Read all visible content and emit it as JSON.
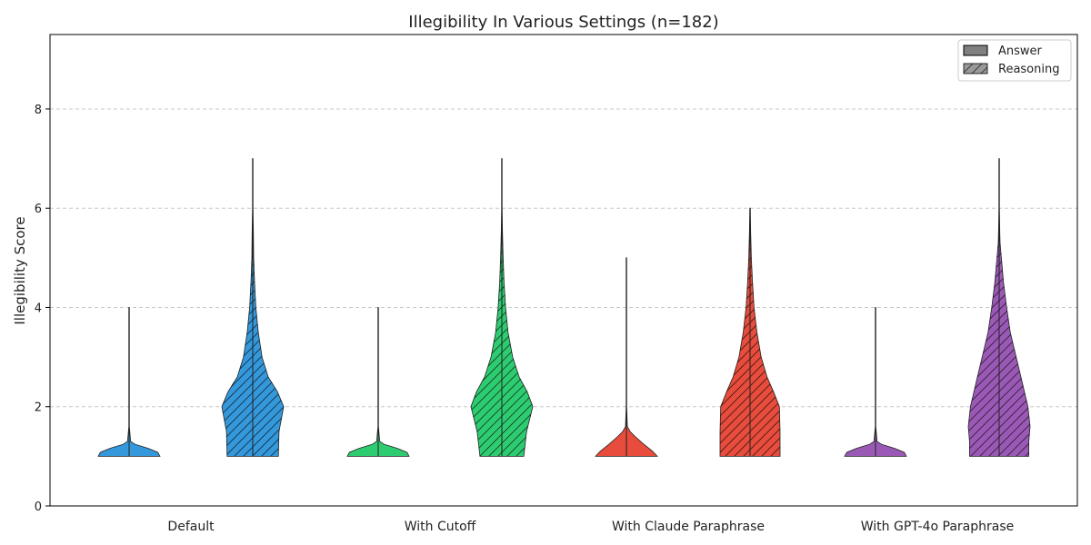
{
  "chart_data": {
    "type": "violin",
    "title": "Illegibility In Various Settings (n=182)",
    "xlabel": "",
    "ylabel": "Illegibility Score",
    "ylim": [
      0,
      9.5
    ],
    "yticks": [
      0,
      2,
      4,
      6,
      8
    ],
    "grid": true,
    "legend_position": "top-right",
    "categories": [
      "Default",
      "With Cutoff",
      "With Claude Paraphrase",
      "With GPT-4o Paraphrase"
    ],
    "colors": [
      "#3498db",
      "#2ecc71",
      "#e74c3c",
      "#9b59b6"
    ],
    "legend": [
      {
        "label": "Answer",
        "pattern": "solid"
      },
      {
        "label": "Reasoning",
        "pattern": "hatched"
      }
    ],
    "series": [
      {
        "name": "Answer",
        "violins": [
          {
            "category": "Default",
            "profile": [
              [
                1.0,
                1.0
              ],
              [
                1.08,
                0.93
              ],
              [
                1.16,
                0.62
              ],
              [
                1.24,
                0.2
              ],
              [
                1.3,
                0.05
              ],
              [
                1.6,
                0.01
              ],
              [
                4.0,
                0.01
              ]
            ]
          },
          {
            "category": "With Cutoff",
            "profile": [
              [
                1.0,
                1.0
              ],
              [
                1.08,
                0.93
              ],
              [
                1.16,
                0.62
              ],
              [
                1.24,
                0.2
              ],
              [
                1.3,
                0.05
              ],
              [
                1.6,
                0.01
              ],
              [
                4.0,
                0.01
              ]
            ]
          },
          {
            "category": "With Claude Paraphrase",
            "profile": [
              [
                1.0,
                1.0
              ],
              [
                1.1,
                0.85
              ],
              [
                1.25,
                0.55
              ],
              [
                1.4,
                0.28
              ],
              [
                1.5,
                0.12
              ],
              [
                1.6,
                0.03
              ],
              [
                2.0,
                0.01
              ],
              [
                5.0,
                0.01
              ]
            ]
          },
          {
            "category": "With GPT-4o Paraphrase",
            "profile": [
              [
                1.0,
                1.0
              ],
              [
                1.08,
                0.93
              ],
              [
                1.16,
                0.62
              ],
              [
                1.24,
                0.2
              ],
              [
                1.3,
                0.05
              ],
              [
                1.6,
                0.01
              ],
              [
                4.0,
                0.01
              ]
            ]
          }
        ]
      },
      {
        "name": "Reasoning",
        "violins": [
          {
            "category": "Default",
            "profile": [
              [
                1.0,
                0.83
              ],
              [
                1.5,
                0.85
              ],
              [
                2.0,
                1.0
              ],
              [
                2.3,
                0.8
              ],
              [
                2.6,
                0.5
              ],
              [
                3.0,
                0.3
              ],
              [
                3.5,
                0.18
              ],
              [
                4.0,
                0.1
              ],
              [
                4.5,
                0.06
              ],
              [
                5.0,
                0.03
              ],
              [
                5.5,
                0.02
              ],
              [
                6.0,
                0.01
              ],
              [
                7.0,
                0.01
              ]
            ]
          },
          {
            "category": "With Cutoff",
            "profile": [
              [
                1.0,
                0.71
              ],
              [
                1.5,
                0.8
              ],
              [
                2.0,
                1.0
              ],
              [
                2.3,
                0.82
              ],
              [
                2.6,
                0.56
              ],
              [
                3.0,
                0.35
              ],
              [
                3.5,
                0.2
              ],
              [
                4.0,
                0.12
              ],
              [
                4.5,
                0.07
              ],
              [
                5.0,
                0.04
              ],
              [
                5.5,
                0.02
              ],
              [
                6.0,
                0.01
              ],
              [
                7.0,
                0.01
              ]
            ]
          },
          {
            "category": "With Claude Paraphrase",
            "profile": [
              [
                1.0,
                0.97
              ],
              [
                1.5,
                0.97
              ],
              [
                2.0,
                0.95
              ],
              [
                2.3,
                0.76
              ],
              [
                2.6,
                0.55
              ],
              [
                3.0,
                0.36
              ],
              [
                3.5,
                0.22
              ],
              [
                4.0,
                0.13
              ],
              [
                4.5,
                0.08
              ],
              [
                5.0,
                0.04
              ],
              [
                5.5,
                0.02
              ],
              [
                6.0,
                0.01
              ]
            ]
          },
          {
            "category": "With GPT-4o Paraphrase",
            "profile": [
              [
                1.0,
                0.96
              ],
              [
                1.3,
                0.96
              ],
              [
                1.6,
                1.0
              ],
              [
                2.0,
                0.93
              ],
              [
                2.5,
                0.74
              ],
              [
                3.0,
                0.55
              ],
              [
                3.5,
                0.36
              ],
              [
                4.0,
                0.24
              ],
              [
                4.5,
                0.14
              ],
              [
                5.0,
                0.07
              ],
              [
                5.3,
                0.03
              ],
              [
                5.5,
                0.02
              ],
              [
                6.0,
                0.01
              ],
              [
                7.0,
                0.01
              ]
            ]
          }
        ]
      }
    ]
  }
}
